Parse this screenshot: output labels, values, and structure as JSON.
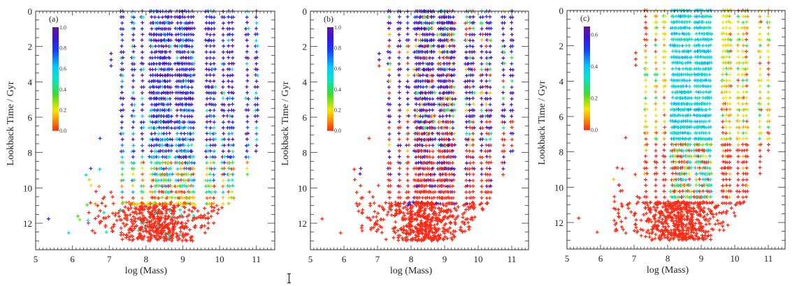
{
  "figure": {
    "cursor_icon": "text-cursor-icon"
  },
  "chart_data": [
    {
      "type": "scatter",
      "panel_label": "(a)",
      "title": "",
      "xlabel": "log (Mass)",
      "ylabel": "Lookback Time / Gyr",
      "xlim": [
        5,
        11.5
      ],
      "ylim": [
        13.5,
        0
      ],
      "y_inverted": true,
      "xticks": [
        "5",
        "6",
        "7",
        "8",
        "9",
        "10",
        "11"
      ],
      "yticks": [
        "0",
        "2",
        "4",
        "6",
        "8",
        "10",
        "12"
      ],
      "marker": "+",
      "grid": false,
      "colorbar": {
        "range": [
          0.0,
          1.0
        ],
        "ticks": [
          "0.0",
          "0.2",
          "0.4",
          "0.6",
          "0.8",
          "1.0"
        ],
        "colormap": "rainbow (red-orange-yellow-green-cyan-blue-purple)",
        "placement": "top-left"
      },
      "mass_columns": [
        7.35,
        7.65,
        7.9,
        8.15,
        8.25,
        8.35,
        8.45,
        8.55,
        8.65,
        8.85,
        8.95,
        9.05,
        9.15,
        9.25,
        9.65,
        9.75,
        9.85,
        10.1,
        10.25,
        10.35,
        10.75,
        11.0
      ],
      "time_rows_gyr": {
        "start": 0.0,
        "step": 0.33,
        "end": 13.0
      },
      "color_trend": "values near 1.0 (purple/blue) at low lookback time (0-7 Gyr); mixed 0.3-0.8 at 7-10 Gyr; near 0.0 (red) at 10.5-13 Gyr",
      "low_mass_outliers": [
        {
          "x": 5.35,
          "y": 11.75,
          "value": 0.85
        },
        {
          "x": 5.9,
          "y": 12.55,
          "value": 0.55
        },
        {
          "x": 6.15,
          "y": 11.6,
          "value": 0.35
        },
        {
          "x": 6.2,
          "y": 11.8,
          "value": 0.3
        },
        {
          "x": 6.5,
          "y": 8.9,
          "value": 0.8
        },
        {
          "x": 6.75,
          "y": 7.2,
          "value": 0.8
        },
        {
          "x": 7.05,
          "y": 2.4,
          "value": 1.0
        },
        {
          "x": 7.05,
          "y": 2.75,
          "value": 1.0
        },
        {
          "x": 7.05,
          "y": 3.1,
          "value": 0.85
        }
      ]
    },
    {
      "type": "scatter",
      "panel_label": "(b)",
      "title": "",
      "xlabel": "log (Mass)",
      "ylabel": "Lookback Time / Gyr",
      "xlim": [
        5,
        11.5
      ],
      "ylim": [
        13.5,
        0
      ],
      "y_inverted": true,
      "xticks": [
        "5",
        "6",
        "7",
        "8",
        "9",
        "10",
        "11"
      ],
      "yticks": [
        "0",
        "2",
        "4",
        "6",
        "8",
        "10",
        "12"
      ],
      "marker": "+",
      "grid": false,
      "colorbar": {
        "range": [
          0.0,
          1.0
        ],
        "ticks": [
          "0.0",
          "0.2",
          "0.4",
          "0.6",
          "0.8",
          "1.0"
        ],
        "colormap": "rainbow (red-orange-yellow-green-cyan-blue-purple)",
        "placement": "top-left"
      },
      "mass_columns": [
        7.35,
        7.65,
        7.9,
        8.15,
        8.25,
        8.35,
        8.45,
        8.55,
        8.65,
        8.85,
        8.95,
        9.05,
        9.15,
        9.25,
        9.65,
        9.75,
        9.85,
        10.1,
        10.25,
        10.35,
        10.75,
        11.0
      ],
      "time_rows_gyr": {
        "start": 0.0,
        "step": 0.33,
        "end": 13.0
      },
      "color_trend": "purple/blue dominant at 0-6 Gyr with scattered green/orange; mixed red/blue at 6-10 Gyr; red (0.0) below 10 Gyr and all low-mass outliers red",
      "low_mass_outliers": [
        {
          "x": 5.35,
          "y": 11.75,
          "value": 0.0
        },
        {
          "x": 5.9,
          "y": 12.55,
          "value": 0.0
        },
        {
          "x": 6.5,
          "y": 8.9,
          "value": 1.0
        },
        {
          "x": 6.75,
          "y": 7.2,
          "value": 0.0
        },
        {
          "x": 7.05,
          "y": 2.4,
          "value": 1.0
        },
        {
          "x": 7.05,
          "y": 2.75,
          "value": 1.0
        },
        {
          "x": 7.05,
          "y": 3.1,
          "value": 0.0
        }
      ]
    },
    {
      "type": "scatter",
      "panel_label": "(c)",
      "title": "",
      "xlabel": "log (Mass)",
      "ylabel": "Lookback Time / Gyr",
      "xlim": [
        5,
        11.5
      ],
      "ylim": [
        13.5,
        0
      ],
      "y_inverted": true,
      "xticks": [
        "5",
        "6",
        "7",
        "8",
        "9",
        "10",
        "11"
      ],
      "yticks": [
        "0",
        "2",
        "4",
        "6",
        "8",
        "10",
        "12"
      ],
      "marker": "+",
      "grid": false,
      "colorbar": {
        "range": [
          0.0,
          0.65
        ],
        "ticks": [
          "0.0",
          "0.2",
          "0.4",
          "0.6"
        ],
        "colormap": "rainbow (red-orange-yellow-green-cyan-blue-purple)",
        "placement": "top-left"
      },
      "mass_columns": [
        7.35,
        7.65,
        7.9,
        8.15,
        8.25,
        8.35,
        8.45,
        8.55,
        8.65,
        8.85,
        8.95,
        9.05,
        9.15,
        9.25,
        9.65,
        9.75,
        9.85,
        10.1,
        10.25,
        10.35,
        10.75,
        11.0
      ],
      "time_rows_gyr": {
        "start": 0.0,
        "step": 0.33,
        "end": 13.0
      },
      "color_trend": "green/yellow (0.2-0.3) at low and high mass columns for 0-7 Gyr; blue/purple (0.5-0.65) in central 8.2-9.3 columns; red (0.0) at 7.5-13 Gyr and low-mass outliers",
      "low_mass_outliers": [
        {
          "x": 5.35,
          "y": 11.75,
          "value": 0.0
        },
        {
          "x": 5.9,
          "y": 12.55,
          "value": 0.0
        },
        {
          "x": 6.5,
          "y": 8.9,
          "value": 0.0
        },
        {
          "x": 6.75,
          "y": 7.2,
          "value": 0.0
        },
        {
          "x": 7.05,
          "y": 2.4,
          "value": 0.0
        },
        {
          "x": 7.05,
          "y": 2.75,
          "value": 0.0
        },
        {
          "x": 7.05,
          "y": 3.1,
          "value": 0.0
        }
      ]
    }
  ]
}
